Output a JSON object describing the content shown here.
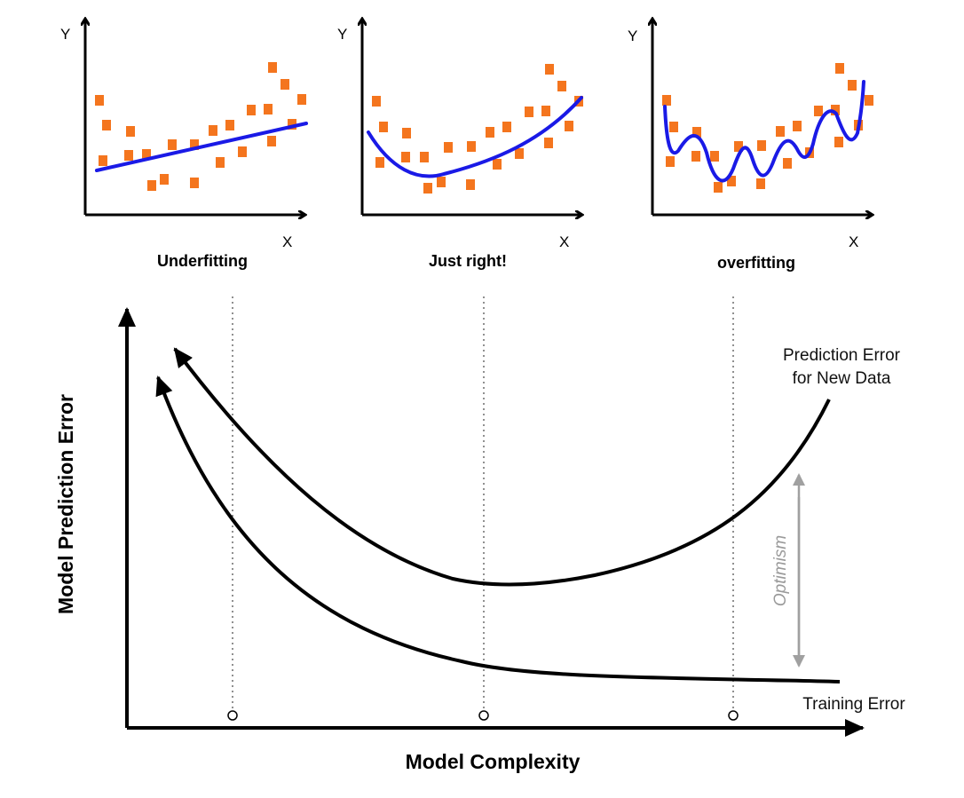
{
  "panels": [
    {
      "id": "underfitting",
      "title": "Underfitting",
      "y_label": "Y",
      "x_label": "X"
    },
    {
      "id": "just-right",
      "title": "Just right!",
      "y_label": "Y",
      "x_label": "X"
    },
    {
      "id": "overfitting",
      "title": "overfitting",
      "y_label": "Y",
      "x_label": "X"
    }
  ],
  "main": {
    "y_label": "Model Prediction Error",
    "x_label": "Model Complexity",
    "prediction_label_line1": "Prediction Error",
    "prediction_label_line2": "for New Data",
    "training_label": "Training Error",
    "optimism_label": "Optimism"
  },
  "colors": {
    "point": "#f4751e",
    "fit_line": "#1a1ae6",
    "curve": "#000000",
    "optimism_arrow": "#a0a0a0"
  }
}
